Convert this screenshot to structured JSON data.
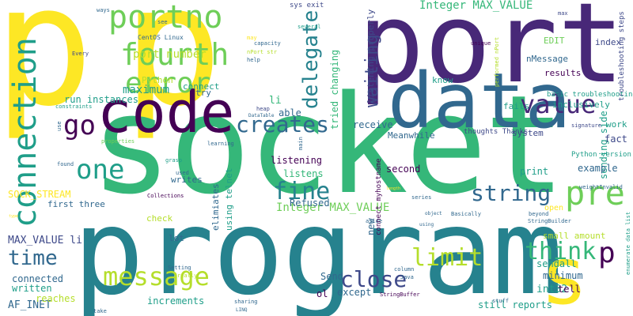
{
  "palette": {
    "yellow": "#fde725",
    "lime": "#b5de2b",
    "green": "#6ece58",
    "teal_green": "#35b779",
    "teal": "#1f9e89",
    "cyan": "#26828e",
    "blue": "#31688e",
    "indigo": "#3e4989",
    "purple": "#482878",
    "dark": "#440154"
  },
  "words": [
    {
      "text": "p",
      "color": "yellow"
    },
    {
      "text": "p",
      "color": "yellow"
    },
    {
      "text": "port",
      "color": "purple"
    },
    {
      "text": "socket",
      "color": "teal_green"
    },
    {
      "text": "program",
      "color": "cyan"
    },
    {
      "text": "data",
      "color": "blue"
    },
    {
      "text": "code",
      "color": "dark"
    },
    {
      "text": "s",
      "color": "yellow"
    },
    {
      "text": "portno",
      "color": "green"
    },
    {
      "text": "fourth",
      "color": "green"
    },
    {
      "text": "error",
      "color": "green"
    },
    {
      "text": "connection",
      "color": "teal"
    },
    {
      "text": "value",
      "color": "purple"
    },
    {
      "text": "delegate",
      "color": "cyan"
    },
    {
      "text": "waiting",
      "color": "indigo"
    },
    {
      "text": "pre",
      "color": "green"
    },
    {
      "text": "go",
      "color": "dark"
    },
    {
      "text": "creates",
      "color": "blue"
    },
    {
      "text": "one",
      "color": "teal"
    },
    {
      "text": "fine",
      "color": "cyan"
    },
    {
      "text": "string",
      "color": "blue"
    },
    {
      "text": "think",
      "color": "teal_green"
    },
    {
      "text": "p",
      "color": "dark"
    },
    {
      "text": "time",
      "color": "blue"
    },
    {
      "text": "message",
      "color": "lime"
    },
    {
      "text": "close",
      "color": "indigo"
    },
    {
      "text": "limit",
      "color": "lime"
    },
    {
      "text": "Integer MAX_VALUE",
      "color": "teal_green"
    },
    {
      "text": "Integer MAX_VALUE",
      "color": "green"
    },
    {
      "text": "port number",
      "color": "lime"
    },
    {
      "text": "maximum",
      "color": "teal"
    },
    {
      "text": "run instances",
      "color": "teal"
    },
    {
      "text": "SOCK_STREAM",
      "color": "yellow"
    },
    {
      "text": "MAX_VALUE li",
      "color": "indigo"
    },
    {
      "text": "AF_INET",
      "color": "blue"
    },
    {
      "text": "int32",
      "color": "teal"
    },
    {
      "text": "sendall",
      "color": "teal"
    },
    {
      "text": "sending side",
      "color": "teal"
    },
    {
      "text": "example",
      "color": "blue"
    },
    {
      "text": "print",
      "color": "teal"
    },
    {
      "text": "listening",
      "color": "dark"
    },
    {
      "text": "listens",
      "color": "teal_green"
    },
    {
      "text": "Refused",
      "color": "blue"
    },
    {
      "text": "receive",
      "color": "blue"
    },
    {
      "text": "second",
      "color": "dark"
    },
    {
      "text": "connected",
      "color": "blue"
    },
    {
      "text": "written",
      "color": "teal"
    },
    {
      "text": "reaches",
      "color": "lime"
    },
    {
      "text": "increments",
      "color": "teal"
    },
    {
      "text": "li",
      "color": "teal_green"
    },
    {
      "text": "able",
      "color": "blue"
    },
    {
      "text": "Send",
      "color": "blue"
    },
    {
      "text": "except",
      "color": "blue"
    },
    {
      "text": "ol",
      "color": "dark"
    },
    {
      "text": "tell",
      "color": "dark"
    },
    {
      "text": "minimum",
      "color": "blue"
    },
    {
      "text": "small amount",
      "color": "lime"
    },
    {
      "text": "still reports",
      "color": "teal"
    },
    {
      "text": "work",
      "color": "teal"
    },
    {
      "text": "fact",
      "color": "indigo"
    },
    {
      "text": "system",
      "color": "indigo"
    },
    {
      "text": "index",
      "color": "indigo"
    },
    {
      "text": "results",
      "color": "dark"
    },
    {
      "text": "inclusively",
      "color": "teal"
    },
    {
      "text": "fails",
      "color": "teal"
    },
    {
      "text": "know",
      "color": "teal"
    },
    {
      "text": "EDIT",
      "color": "green"
    },
    {
      "text": "nMessage",
      "color": "blue"
    },
    {
      "text": "Meanwhile",
      "color": "blue"
    },
    {
      "text": "thoughts Thanks",
      "color": "indigo"
    },
    {
      "text": "first three",
      "color": "blue"
    },
    {
      "text": "writes",
      "color": "blue"
    },
    {
      "text": "check",
      "color": "lime"
    },
    {
      "text": "lot",
      "color": "blue"
    },
    {
      "text": "try",
      "color": "blue"
    },
    {
      "text": "connect",
      "color": "teal"
    },
    {
      "text": "Python",
      "color": "lime"
    },
    {
      "text": "open",
      "color": "yellow"
    },
    {
      "text": "basic troubleshooting",
      "color": "teal"
    },
    {
      "text": "Python version",
      "color": "teal"
    },
    {
      "text": "troubleshooting steps",
      "color": "indigo"
    },
    {
      "text": "sys exit",
      "color": "indigo"
    },
    {
      "text": "CentOS Linux",
      "color": "blue"
    },
    {
      "text": "several",
      "color": "teal"
    },
    {
      "text": "capacity",
      "color": "blue"
    },
    {
      "text": "nPort str",
      "color": "lime"
    },
    {
      "text": "help",
      "color": "blue"
    },
    {
      "text": "Every",
      "color": "indigo"
    },
    {
      "text": "unique",
      "color": "dark"
    },
    {
      "text": "performed nPort",
      "color": "lime"
    },
    {
      "text": "max",
      "color": "indigo"
    },
    {
      "text": "heap",
      "color": "indigo"
    },
    {
      "text": "DataTable",
      "color": "blue"
    },
    {
      "text": "constraints",
      "color": "teal"
    },
    {
      "text": "properties",
      "color": "green"
    },
    {
      "text": "learning",
      "color": "blue"
    },
    {
      "text": "grasp",
      "color": "teal"
    },
    {
      "text": "found",
      "color": "blue"
    },
    {
      "text": "used",
      "color": "blue"
    },
    {
      "text": "Collections",
      "color": "dark"
    },
    {
      "text": "signature",
      "color": "indigo"
    },
    {
      "text": "weightInvalid",
      "color": "blue"
    },
    {
      "text": "beyond",
      "color": "blue"
    },
    {
      "text": "StringBuilder",
      "color": "blue"
    },
    {
      "text": "Basically",
      "color": "blue"
    },
    {
      "text": "series",
      "color": "blue"
    },
    {
      "text": "object",
      "color": "blue"
    },
    {
      "text": "aside",
      "color": "blue"
    },
    {
      "text": "using",
      "color": "blue"
    },
    {
      "text": "column",
      "color": "blue"
    },
    {
      "text": "Java",
      "color": "blue"
    },
    {
      "text": "Setting",
      "color": "blue"
    },
    {
      "text": "really",
      "color": "lime"
    },
    {
      "text": "sharing",
      "color": "blue"
    },
    {
      "text": "take",
      "color": "blue"
    },
    {
      "text": "StringBuffer",
      "color": "dark"
    },
    {
      "text": "LINQ",
      "color": "blue"
    },
    {
      "text": "stuff",
      "color": "blue"
    },
    {
      "text": "enumerate data list",
      "color": "teal"
    },
    {
      "text": "elimiates",
      "color": "blue"
    },
    {
      "text": "using telnet",
      "color": "teal"
    },
    {
      "text": "new",
      "color": "blue"
    },
    {
      "text": "connect myhostname",
      "color": "dark"
    },
    {
      "text": "tried changing",
      "color": "teal_green"
    },
    {
      "text": "listening properly",
      "color": "indigo"
    },
    {
      "text": "use",
      "color": "blue"
    },
    {
      "text": "ways",
      "color": "blue"
    },
    {
      "text": "see",
      "color": "blue"
    },
    {
      "text": "may",
      "color": "yellow"
    },
    {
      "text": "main",
      "color": "blue"
    },
    {
      "text": "length",
      "color": "yellow"
    },
    {
      "text": "type",
      "color": "yellow"
    }
  ]
}
